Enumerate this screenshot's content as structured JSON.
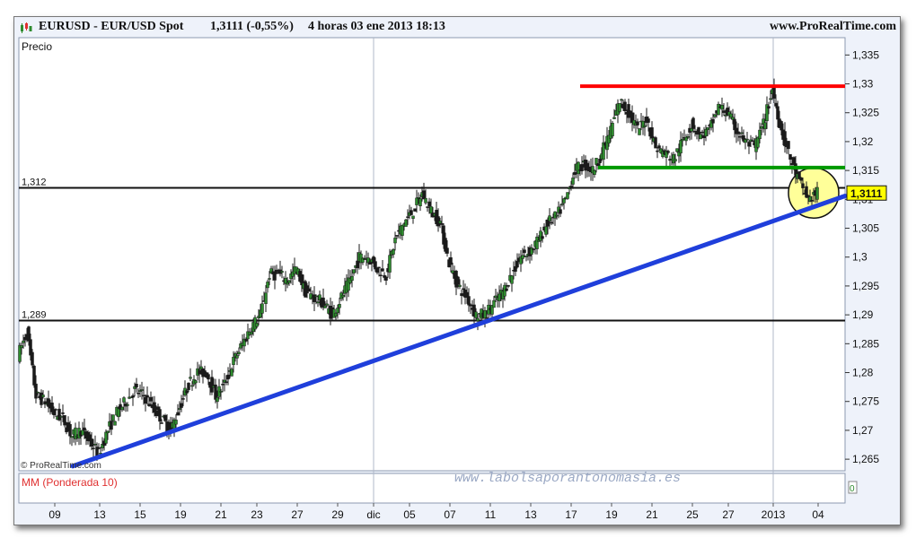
{
  "header": {
    "symbol": "EURUSD - EUR/USD Spot",
    "price_change": "1,3111 (-0,55%)",
    "period": "4 horas  03 ene 2013 18:13",
    "brand": "www.ProRealTime.com"
  },
  "panel": {
    "price_label": "Precio",
    "copyright": "© ProRealTime.com",
    "watermark": "www.labolsaporantonomasia.es",
    "indicator_label": "MM (Ponderada 10)",
    "indicator_value": "0"
  },
  "colors": {
    "resistance": "#ff0000",
    "support": "#009900",
    "trendline": "#1f3fdb",
    "candle": "#1a1a1a",
    "candle_up": "#2e8b2e",
    "highlight": "#ffff99",
    "indicator": "#e03030",
    "price_tag": "#ffff00"
  },
  "chart_data": {
    "type": "candlestick",
    "y_axis": {
      "min": 1.263,
      "max": 1.338,
      "side": "right",
      "ticks": [
        "1,335",
        "1,33",
        "1,325",
        "1,32",
        "1,315",
        "1,31",
        "1,305",
        "1,3",
        "1,295",
        "1,29",
        "1,285",
        "1,28",
        "1,275",
        "1,27",
        "1,265"
      ],
      "tick_values": [
        1.335,
        1.33,
        1.325,
        1.32,
        1.315,
        1.31,
        1.305,
        1.3,
        1.295,
        1.29,
        1.285,
        1.28,
        1.275,
        1.27,
        1.265
      ]
    },
    "x_axis": {
      "ticks": [
        "09",
        "13",
        "15",
        "19",
        "21",
        "23",
        "27",
        "29",
        "dic",
        "05",
        "07",
        "11",
        "13",
        "17",
        "19",
        "21",
        "25",
        "27",
        "2013",
        "04"
      ],
      "tick_positions": [
        4,
        9,
        13.5,
        18,
        22.5,
        26.5,
        31,
        35.5,
        39.5,
        43.5,
        48,
        52.5,
        57,
        61.5,
        66,
        70.5,
        75,
        79,
        84,
        89
      ]
    },
    "vertical_markers": [
      39.5,
      84
    ],
    "horizontal_levels": [
      {
        "label": "1,312",
        "value": 1.312
      },
      {
        "label": "1,289",
        "value": 1.289
      }
    ],
    "resistance": {
      "value": 1.3296,
      "from": 62.5,
      "to": 92
    },
    "support": {
      "value": 1.3155,
      "from": 64.5,
      "to": 92
    },
    "trendline": {
      "from": [
        6,
        1.2638
      ],
      "to": [
        92,
        1.3106
      ]
    },
    "last_price": "1,3111",
    "last_price_value": 1.3111,
    "highlight_circle": {
      "x": 88.5,
      "y": 1.3111
    },
    "price_path": [
      [
        0,
        1.283
      ],
      [
        1,
        1.287
      ],
      [
        2,
        1.276
      ],
      [
        3,
        1.275
      ],
      [
        4,
        1.273
      ],
      [
        5,
        1.272
      ],
      [
        6,
        1.269
      ],
      [
        7,
        1.27
      ],
      [
        8,
        1.268
      ],
      [
        9,
        1.266
      ],
      [
        10,
        1.27
      ],
      [
        11,
        1.273
      ],
      [
        12,
        1.275
      ],
      [
        13,
        1.277
      ],
      [
        14,
        1.276
      ],
      [
        15,
        1.274
      ],
      [
        16,
        1.272
      ],
      [
        17,
        1.27
      ],
      [
        18,
        1.274
      ],
      [
        19,
        1.278
      ],
      [
        20,
        1.28
      ],
      [
        21,
        1.28
      ],
      [
        22,
        1.276
      ],
      [
        23,
        1.278
      ],
      [
        24,
        1.282
      ],
      [
        25,
        1.285
      ],
      [
        26,
        1.288
      ],
      [
        27,
        1.29
      ],
      [
        28,
        1.297
      ],
      [
        29,
        1.297
      ],
      [
        30,
        1.296
      ],
      [
        31,
        1.298
      ],
      [
        32,
        1.294
      ],
      [
        33,
        1.293
      ],
      [
        34,
        1.292
      ],
      [
        35,
        1.29
      ],
      [
        36,
        1.293
      ],
      [
        37,
        1.296
      ],
      [
        38,
        1.3
      ],
      [
        39,
        1.3
      ],
      [
        40,
        1.298
      ],
      [
        41,
        1.297
      ],
      [
        42,
        1.303
      ],
      [
        43,
        1.306
      ],
      [
        44,
        1.308
      ],
      [
        45,
        1.311
      ],
      [
        46,
        1.308
      ],
      [
        47,
        1.306
      ],
      [
        48,
        1.299
      ],
      [
        49,
        1.295
      ],
      [
        50,
        1.293
      ],
      [
        51,
        1.29
      ],
      [
        52,
        1.29
      ],
      [
        53,
        1.292
      ],
      [
        54,
        1.294
      ],
      [
        55,
        1.297
      ],
      [
        56,
        1.3
      ],
      [
        57,
        1.301
      ],
      [
        58,
        1.303
      ],
      [
        59,
        1.306
      ],
      [
        60,
        1.307
      ],
      [
        61,
        1.31
      ],
      [
        62,
        1.315
      ],
      [
        63,
        1.316
      ],
      [
        64,
        1.315
      ],
      [
        65,
        1.318
      ],
      [
        66,
        1.322
      ],
      [
        67,
        1.327
      ],
      [
        68,
        1.325
      ],
      [
        69,
        1.322
      ],
      [
        70,
        1.324
      ],
      [
        71,
        1.319
      ],
      [
        72,
        1.318
      ],
      [
        73,
        1.317
      ],
      [
        74,
        1.32
      ],
      [
        75,
        1.323
      ],
      [
        76,
        1.321
      ],
      [
        77,
        1.322
      ],
      [
        78,
        1.326
      ],
      [
        79,
        1.325
      ],
      [
        80,
        1.322
      ],
      [
        81,
        1.32
      ],
      [
        82,
        1.319
      ],
      [
        83,
        1.323
      ],
      [
        84,
        1.329
      ],
      [
        85,
        1.322
      ],
      [
        86,
        1.317
      ],
      [
        87,
        1.313
      ],
      [
        88,
        1.31
      ],
      [
        89,
        1.3111
      ]
    ]
  }
}
